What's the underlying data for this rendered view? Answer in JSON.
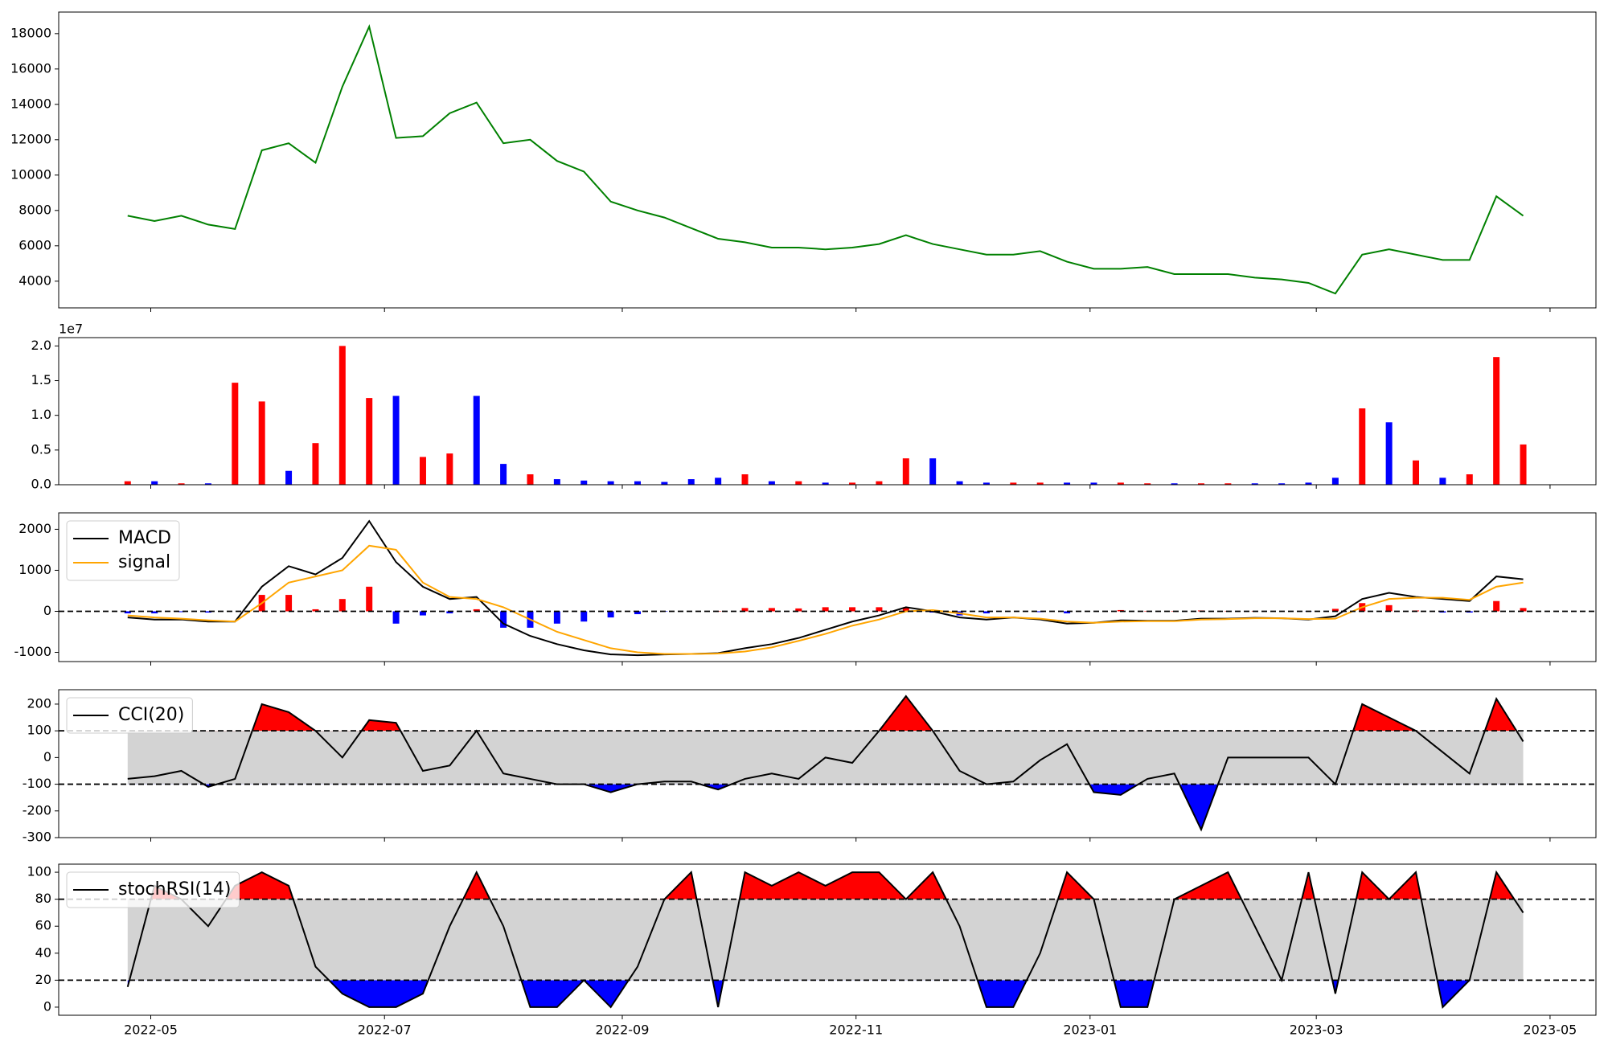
{
  "chart_data": [
    {
      "type": "line",
      "color": "#008000",
      "values": [
        7700,
        7400,
        7700,
        7200,
        6950,
        11400,
        11800,
        10700,
        15000,
        18400,
        12100,
        12200,
        13500,
        14100,
        11800,
        12000,
        10800,
        10200,
        8500,
        8000,
        7600,
        7000,
        6400,
        6200,
        5900,
        5900,
        5800,
        5900,
        6100,
        6600,
        6100,
        5800,
        5500,
        5500,
        5700,
        5100,
        4700,
        4700,
        4800,
        4400,
        4400,
        4400,
        4200,
        4100,
        3900,
        3300,
        5500,
        5800,
        5500,
        5200,
        5200,
        8800,
        7700
      ],
      "ylim": [
        2490,
        19220
      ],
      "yticks": [
        4000,
        6000,
        8000,
        10000,
        12000,
        14000,
        16000,
        18000
      ]
    },
    {
      "type": "bar",
      "offset_label": "1e7",
      "values": [
        0.05,
        0.05,
        0.02,
        0.02,
        1.47,
        1.2,
        0.2,
        0.6,
        2.0,
        1.25,
        1.28,
        0.4,
        0.45,
        1.28,
        0.3,
        0.15,
        0.08,
        0.06,
        0.05,
        0.05,
        0.04,
        0.08,
        0.1,
        0.15,
        0.05,
        0.05,
        0.03,
        0.03,
        0.05,
        0.38,
        0.38,
        0.05,
        0.03,
        0.03,
        0.03,
        0.03,
        0.03,
        0.03,
        0.02,
        0.02,
        0.02,
        0.02,
        0.02,
        0.02,
        0.03,
        0.1,
        1.1,
        0.9,
        0.35,
        0.1,
        0.15,
        1.84,
        0.58
      ],
      "colors": [
        "red",
        "blue",
        "red",
        "blue",
        "red",
        "red",
        "blue",
        "red",
        "red",
        "red",
        "blue",
        "red",
        "red",
        "blue",
        "blue",
        "red",
        "blue",
        "blue",
        "blue",
        "blue",
        "blue",
        "blue",
        "blue",
        "red",
        "blue",
        "red",
        "blue",
        "red",
        "red",
        "red",
        "blue",
        "blue",
        "blue",
        "red",
        "red",
        "blue",
        "blue",
        "red",
        "red",
        "blue",
        "red",
        "red",
        "blue",
        "blue",
        "blue",
        "blue",
        "red",
        "blue",
        "red",
        "blue",
        "red",
        "red",
        "red"
      ],
      "ylim": [
        0,
        2.12
      ],
      "yticks": [
        {
          "value": 0,
          "label": "0.0"
        },
        {
          "value": 0.5,
          "label": "0.5"
        },
        {
          "value": 1,
          "label": "1.0"
        },
        {
          "value": 1.5,
          "label": "1.5"
        },
        {
          "value": 2,
          "label": "2.0"
        }
      ]
    },
    {
      "type": "line",
      "series": [
        {
          "name": "MACD",
          "color": "black",
          "values": [
            -150,
            -200,
            -200,
            -250,
            -250,
            600,
            1100,
            900,
            1300,
            2200,
            1200,
            600,
            300,
            350,
            -300,
            -600,
            -800,
            -950,
            -1050,
            -1070,
            -1050,
            -1040,
            -1020,
            -900,
            -800,
            -650,
            -450,
            -250,
            -100,
            100,
            0,
            -150,
            -200,
            -150,
            -200,
            -300,
            -280,
            -220,
            -230,
            -230,
            -180,
            -180,
            -160,
            -170,
            -200,
            -120,
            300,
            450,
            350,
            300,
            250,
            850,
            780
          ]
        },
        {
          "name": "signal",
          "color": "orange",
          "values": [
            -100,
            -150,
            -180,
            -220,
            -250,
            200,
            700,
            850,
            1000,
            1600,
            1500,
            700,
            350,
            300,
            100,
            -200,
            -500,
            -700,
            -900,
            -1000,
            -1040,
            -1040,
            -1030,
            -980,
            -880,
            -720,
            -550,
            -350,
            -200,
            0,
            30,
            -50,
            -150,
            -150,
            -180,
            -250,
            -280,
            -250,
            -240,
            -240,
            -200,
            -190,
            -170,
            -170,
            -190,
            -180,
            100,
            300,
            330,
            330,
            280,
            600,
            700
          ]
        }
      ],
      "histogram": {
        "colors": [
          "red",
          "blue"
        ],
        "values": [
          -50,
          -50,
          -20,
          -30,
          0,
          400,
          400,
          50,
          300,
          600,
          -300,
          -100,
          -50,
          50,
          -400,
          -400,
          -300,
          -250,
          -150,
          -70,
          -10,
          0,
          10,
          80,
          80,
          70,
          100,
          100,
          100,
          100,
          -30,
          -100,
          -50,
          0,
          -20,
          -50,
          0,
          30,
          10,
          10,
          20,
          10,
          10,
          0,
          -10,
          60,
          200,
          150,
          20,
          -30,
          -30,
          250,
          80
        ]
      },
      "hlines": [
        0
      ],
      "legend": "upper left",
      "ylim": [
        -1225,
        2400
      ],
      "yticks": [
        -1000,
        0,
        1000,
        2000
      ]
    },
    {
      "type": "line",
      "series": [
        {
          "name": "CCI(20)",
          "color": "black",
          "values": [
            -80,
            -70,
            -50,
            -110,
            -80,
            200,
            170,
            100,
            0,
            140,
            130,
            -50,
            -30,
            100,
            -60,
            -80,
            -100,
            -100,
            -130,
            -100,
            -90,
            -90,
            -120,
            -80,
            -60,
            -80,
            0,
            -20,
            100,
            230,
            100,
            -50,
            -100,
            -90,
            -10,
            50,
            -130,
            -140,
            -80,
            -60,
            -270,
            0,
            0,
            0,
            0,
            -100,
            200,
            150,
            100,
            20,
            -60,
            220,
            60
          ]
        }
      ],
      "hlines": [
        100,
        -100
      ],
      "band_color": "lightgrey",
      "fill_above": "red",
      "fill_below": "blue",
      "legend": "upper left",
      "ylim": [
        -300,
        254
      ],
      "yticks": [
        -300,
        -200,
        -100,
        0,
        100,
        200
      ]
    },
    {
      "type": "line",
      "series": [
        {
          "name": "stochRSI(14)",
          "color": "black",
          "values": [
            15,
            90,
            80,
            60,
            90,
            100,
            90,
            30,
            10,
            0,
            0,
            10,
            60,
            100,
            60,
            0,
            0,
            20,
            0,
            30,
            80,
            100,
            0,
            100,
            90,
            100,
            90,
            100,
            100,
            80,
            100,
            60,
            0,
            0,
            40,
            100,
            80,
            0,
            0,
            80,
            90,
            100,
            60,
            20,
            100,
            10,
            100,
            80,
            100,
            0,
            20,
            100,
            70
          ]
        }
      ],
      "hlines": [
        80,
        20
      ],
      "band_color": "lightgrey",
      "fill_above": "red",
      "fill_below": "blue",
      "legend": "upper left",
      "ylim": [
        -6,
        106
      ],
      "yticks": [
        0,
        20,
        40,
        60,
        80,
        100
      ],
      "xlim": [
        -2.57,
        54.71
      ],
      "xticks": [
        {
          "value": 0.86,
          "label": "2022-05"
        },
        {
          "value": 9.57,
          "label": "2022-07"
        },
        {
          "value": 18.43,
          "label": "2022-09"
        },
        {
          "value": 27.14,
          "label": "2022-11"
        },
        {
          "value": 35.86,
          "label": "2023-01"
        },
        {
          "value": 44.29,
          "label": "2023-03"
        },
        {
          "value": 53.0,
          "label": "2023-05"
        }
      ]
    }
  ]
}
